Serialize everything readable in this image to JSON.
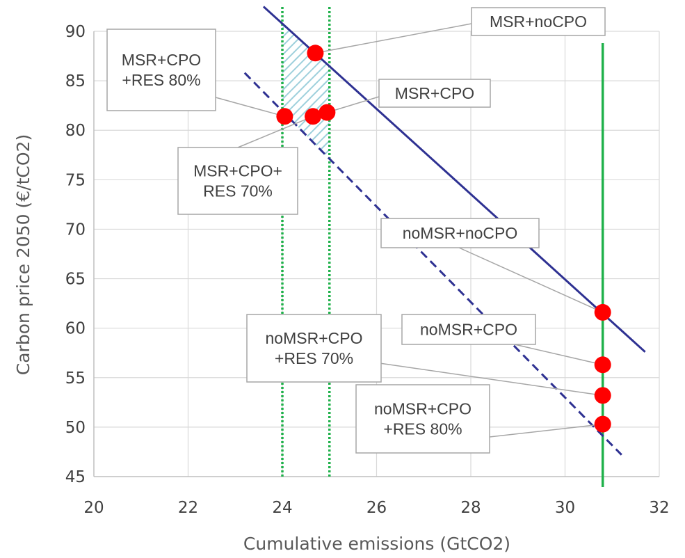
{
  "chart_data": {
    "type": "scatter",
    "title": "",
    "xlabel": "Cumulative emissions (GtCO2)",
    "ylabel": "Carbon price 2050 (€/tCO2)",
    "xlim": [
      20,
      32
    ],
    "ylim": [
      45,
      90
    ],
    "xticks": [
      "20",
      "22",
      "24",
      "26",
      "28",
      "30",
      "32"
    ],
    "yticks": [
      "45",
      "50",
      "55",
      "60",
      "65",
      "70",
      "75",
      "80",
      "85",
      "90"
    ],
    "grid": true,
    "legend": "none",
    "points": [
      {
        "label": "MSR+noCPO",
        "x": 24.7,
        "y": 87.8
      },
      {
        "label": "MSR+CPO",
        "x": 24.95,
        "y": 81.8
      },
      {
        "label": "MSR+CPO+ RES 70%",
        "x": 24.65,
        "y": 81.4
      },
      {
        "label": "MSR+CPO +RES 80%",
        "x": 24.05,
        "y": 81.4
      },
      {
        "label": "noMSR+noCPO",
        "x": 30.8,
        "y": 61.6
      },
      {
        "label": "noMSR+CPO",
        "x": 30.8,
        "y": 56.3
      },
      {
        "label": "noMSR+CPO +RES 70%",
        "x": 30.8,
        "y": 53.2
      },
      {
        "label": "noMSR+CPO +RES 80%",
        "x": 30.8,
        "y": 50.3
      }
    ],
    "lines": [
      {
        "style": "solid",
        "color": "#2e3192",
        "from": [
          23.6,
          92.5
        ],
        "to": [
          31.7,
          57.6
        ]
      },
      {
        "style": "dashed",
        "color": "#2e3192",
        "from": [
          23.2,
          85.8
        ],
        "to": [
          31.2,
          47.2
        ]
      }
    ],
    "vlines": [
      {
        "style": "dotted",
        "color": "#1fb14a",
        "x": 24.0
      },
      {
        "style": "dotted",
        "color": "#1fb14a",
        "x": 25.0
      },
      {
        "style": "solid",
        "color": "#1fb14a",
        "x": 30.8
      }
    ],
    "shaded_band": {
      "x": [
        24.0,
        25.0
      ],
      "hatch": "diagonal",
      "color": "#9ed0dc"
    },
    "marker_color": "#ff0000"
  }
}
